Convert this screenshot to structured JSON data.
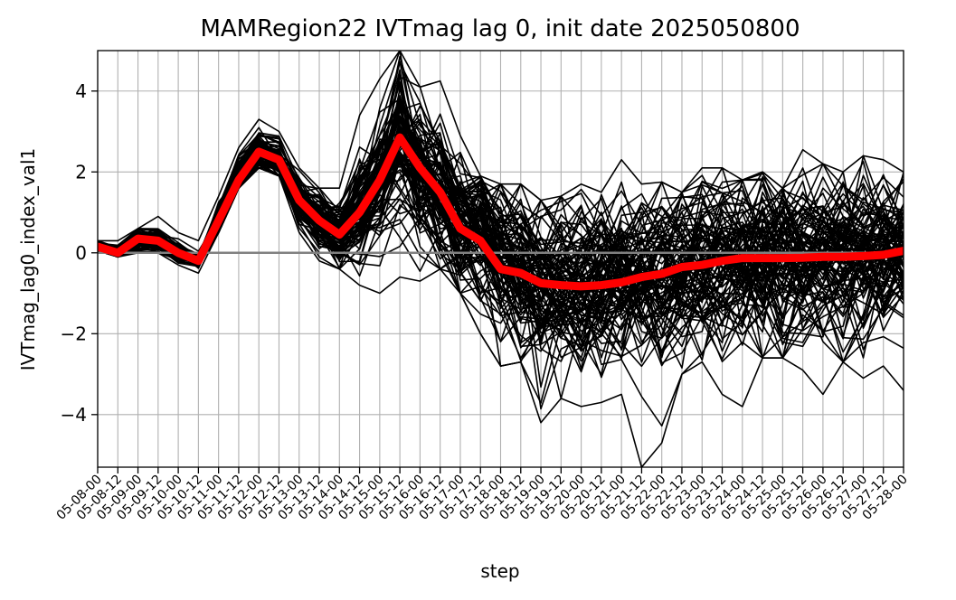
{
  "chart_data": {
    "type": "line",
    "title": "MAMRegion22 IVTmag lag 0, init date 2025050800",
    "xlabel": "step",
    "ylabel": "IVTmag_lag0_index_val1",
    "ylim": [
      -5.3,
      5.0
    ],
    "yticks": [
      4,
      2,
      0,
      -2,
      -4
    ],
    "ytick_labels": [
      "4",
      "2",
      "0",
      "−2",
      "−4"
    ],
    "grid": true,
    "categories": [
      "05-08-00",
      "05-08-12",
      "05-09-00",
      "05-09-12",
      "05-10-00",
      "05-10-12",
      "05-11-00",
      "05-11-12",
      "05-12-00",
      "05-12-12",
      "05-13-00",
      "05-13-12",
      "05-14-00",
      "05-14-12",
      "05-15-00",
      "05-15-12",
      "05-16-00",
      "05-16-12",
      "05-17-00",
      "05-17-12",
      "05-18-00",
      "05-18-12",
      "05-19-00",
      "05-19-12",
      "05-20-00",
      "05-20-12",
      "05-21-00",
      "05-21-12",
      "05-22-00",
      "05-22-12",
      "05-23-00",
      "05-23-12",
      "05-24-00",
      "05-24-12",
      "05-25-00",
      "05-25-12",
      "05-26-00",
      "05-26-12",
      "05-27-00",
      "05-27-12",
      "05-28-00"
    ],
    "mean_series": {
      "color": "#ff0000",
      "values": [
        0.15,
        0.0,
        0.35,
        0.3,
        0.0,
        -0.2,
        0.8,
        1.8,
        2.5,
        2.3,
        1.3,
        0.8,
        0.45,
        1.0,
        1.8,
        2.85,
        2.1,
        1.5,
        0.6,
        0.3,
        -0.4,
        -0.5,
        -0.75,
        -0.8,
        -0.83,
        -0.8,
        -0.73,
        -0.6,
        -0.52,
        -0.35,
        -0.3,
        -0.2,
        -0.13,
        -0.13,
        -0.13,
        -0.12,
        -0.1,
        -0.1,
        -0.08,
        -0.05,
        0.05
      ]
    },
    "ensemble": {
      "color": "#000000",
      "members": 100,
      "spread_std": [
        0.08,
        0.08,
        0.15,
        0.15,
        0.12,
        0.1,
        0.2,
        0.3,
        0.25,
        0.25,
        0.25,
        0.3,
        0.4,
        0.6,
        0.8,
        1.0,
        0.9,
        0.9,
        0.9,
        0.9,
        0.9,
        1.0,
        1.0,
        1.0,
        1.0,
        1.0,
        1.0,
        1.0,
        1.0,
        1.0,
        1.0,
        1.0,
        1.0,
        1.0,
        1.0,
        0.9,
        0.9,
        0.9,
        0.9,
        0.9,
        0.9
      ],
      "envelope_max": [
        0.3,
        0.3,
        0.6,
        0.9,
        0.5,
        0.3,
        1.4,
        2.6,
        3.3,
        3.0,
        2.1,
        1.6,
        1.6,
        3.4,
        4.3,
        5.0,
        4.1,
        4.25,
        2.9,
        1.9,
        1.7,
        1.7,
        1.3,
        1.4,
        1.7,
        1.5,
        2.3,
        1.7,
        1.75,
        1.5,
        2.1,
        2.1,
        1.8,
        2.0,
        1.6,
        2.55,
        2.2,
        2.0,
        2.4,
        2.3,
        2.0
      ],
      "envelope_min": [
        0.05,
        -0.1,
        0.0,
        0.0,
        -0.3,
        -0.5,
        0.5,
        1.6,
        2.1,
        1.9,
        0.5,
        -0.2,
        -0.4,
        -0.8,
        -1.0,
        -0.6,
        -0.7,
        -0.4,
        -1.0,
        -2.0,
        -2.8,
        -2.7,
        -4.2,
        -3.6,
        -3.8,
        -3.7,
        -3.5,
        -5.3,
        -4.7,
        -3.0,
        -2.7,
        -3.5,
        -3.8,
        -2.6,
        -2.6,
        -2.9,
        -3.5,
        -2.7,
        -3.1,
        -2.8,
        -3.4
      ]
    },
    "zero_line_color": "#808080"
  }
}
